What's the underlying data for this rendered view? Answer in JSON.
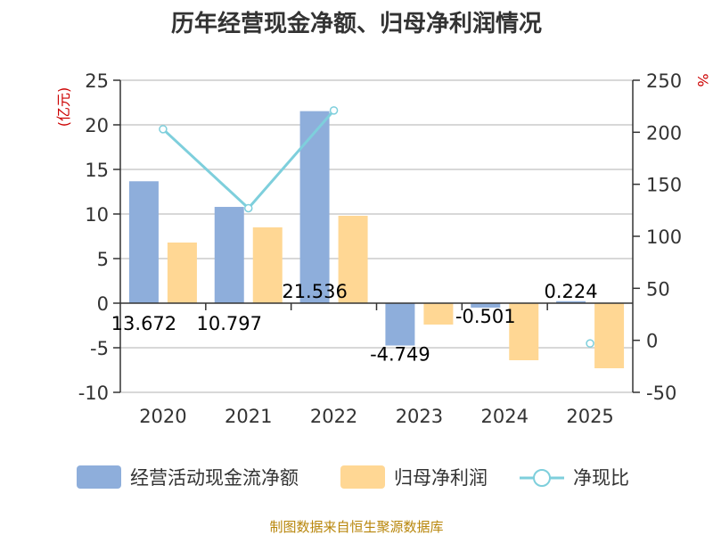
{
  "chart_data": {
    "type": "bar",
    "title": "历年经营现金净额、归母净利润情况",
    "categories": [
      "2020",
      "2021",
      "2022",
      "2023",
      "2024",
      "2025"
    ],
    "series": [
      {
        "name": "经营活动现金流净额",
        "kind": "bar",
        "axis": "left",
        "color": "#8eaedb",
        "values": [
          13.672,
          10.797,
          21.536,
          -4.749,
          -0.501,
          0.224
        ],
        "labels": [
          "13.672",
          "10.797",
          "21.536",
          "-4.749",
          "-0.501",
          "0.224"
        ]
      },
      {
        "name": "归母净利润",
        "kind": "bar",
        "axis": "left",
        "color": "#ffd794",
        "values": [
          6.8,
          8.5,
          9.8,
          -2.4,
          -6.4,
          -7.3
        ]
      },
      {
        "name": "净现比",
        "kind": "line",
        "axis": "right",
        "color": "#7ecfdc",
        "values": [
          203,
          127,
          221,
          null,
          null,
          -3
        ]
      }
    ],
    "y_left": {
      "label": "(亿元)",
      "min": -10,
      "max": 25,
      "ticks": [
        25,
        20,
        15,
        10,
        5,
        0,
        -5,
        -10
      ]
    },
    "y_right": {
      "label": "%",
      "min": -50,
      "max": 250,
      "ticks": [
        250,
        200,
        150,
        100,
        50,
        0,
        -50
      ]
    },
    "grid": true,
    "legend_position": "bottom"
  },
  "source": "制图数据来自恒生聚源数据库"
}
